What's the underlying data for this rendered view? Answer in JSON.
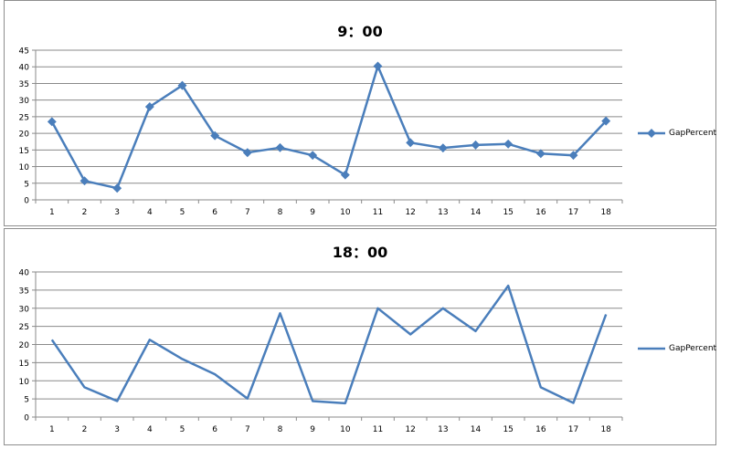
{
  "chart_data": [
    {
      "type": "line",
      "title": "9：00",
      "categories": [
        "1",
        "2",
        "3",
        "4",
        "5",
        "6",
        "7",
        "8",
        "9",
        "10",
        "11",
        "12",
        "13",
        "14",
        "15",
        "16",
        "17",
        "18"
      ],
      "series": [
        {
          "name": "GapPercent",
          "values": [
            23.5,
            5.7,
            3.5,
            28.0,
            34.4,
            19.3,
            14.2,
            15.7,
            13.4,
            7.5,
            40.2,
            17.2,
            15.6,
            16.5,
            16.8,
            13.9,
            13.4,
            23.7
          ],
          "markers": true,
          "color": "#4a7ebb"
        }
      ],
      "yticks": [
        "0",
        "5",
        "10",
        "15",
        "20",
        "25",
        "30",
        "35",
        "40",
        "45"
      ],
      "ylim": [
        0,
        45
      ],
      "xlabel": "",
      "ylabel": "",
      "grid": true,
      "legend_position": "right"
    },
    {
      "type": "line",
      "title": "18：00",
      "categories": [
        "1",
        "2",
        "3",
        "4",
        "5",
        "6",
        "7",
        "8",
        "9",
        "10",
        "11",
        "12",
        "13",
        "14",
        "15",
        "16",
        "17",
        "18"
      ],
      "series": [
        {
          "name": "GapPercent",
          "values": [
            21.3,
            8.2,
            4.4,
            21.3,
            16.0,
            11.8,
            5.1,
            28.6,
            4.4,
            3.8,
            30.0,
            22.8,
            30.0,
            23.7,
            36.2,
            8.2,
            3.9,
            28.3
          ],
          "markers": false,
          "color": "#4a7ebb"
        }
      ],
      "yticks": [
        "0",
        "5",
        "10",
        "15",
        "20",
        "25",
        "30",
        "35",
        "40"
      ],
      "ylim": [
        0,
        40
      ],
      "xlabel": "",
      "ylabel": "",
      "grid": true,
      "legend_position": "right"
    }
  ]
}
